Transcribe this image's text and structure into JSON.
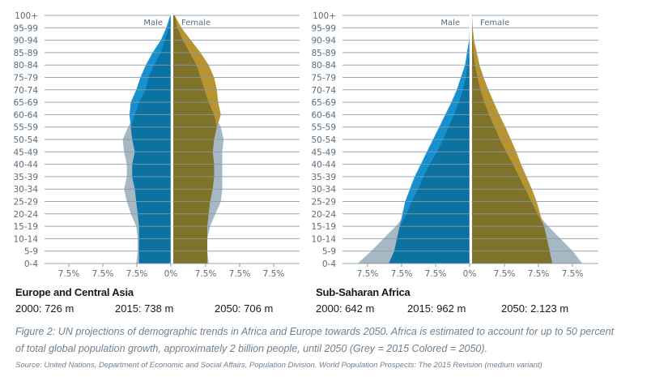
{
  "chart_data": [
    {
      "type": "bar",
      "subtype": "population-pyramid",
      "title": "Europe and Central Asia",
      "categories": [
        "100+",
        "95-99",
        "90-94",
        "85-89",
        "80-84",
        "75-79",
        "70-74",
        "65-69",
        "60-64",
        "55-59",
        "50-54",
        "45-49",
        "40-44",
        "35-39",
        "30-34",
        "25-29",
        "20-24",
        "15-19",
        "10-14",
        "5-9",
        "0-4"
      ],
      "sex_labels": {
        "male": "Male",
        "female": "Female"
      },
      "x_tick_labels": [
        "7.5%",
        "7.5%",
        "7.5%",
        "0%",
        "7.5%",
        "7.5%",
        "7.5%"
      ],
      "x_tick_values": [
        -7.5,
        -5,
        -2.5,
        0,
        2.5,
        5,
        7.5
      ],
      "xlim": [
        -9.0,
        9.5
      ],
      "unit": "% of population",
      "series": [
        {
          "name": "Male 2015",
          "year": "2015",
          "sex": "male",
          "values": [
            0.1,
            0.2,
            0.5,
            0.8,
            1.3,
            1.7,
            1.9,
            2.4,
            2.7,
            3.2,
            3.6,
            3.5,
            3.3,
            3.3,
            3.5,
            3.3,
            3.0,
            2.6,
            2.5,
            2.5,
            2.6
          ]
        },
        {
          "name": "Female 2015",
          "year": "2015",
          "sex": "female",
          "values": [
            0.1,
            0.3,
            0.7,
            1.2,
            1.7,
            2.0,
            2.3,
            2.6,
            3.0,
            3.5,
            3.7,
            3.6,
            3.6,
            3.6,
            3.6,
            3.5,
            3.1,
            2.7,
            2.5,
            2.5,
            2.6
          ]
        },
        {
          "name": "Male 2050",
          "year": "2050",
          "sex": "male",
          "values": [
            0.1,
            0.4,
            0.8,
            1.4,
            1.9,
            2.3,
            2.6,
            3.0,
            3.1,
            3.0,
            2.9,
            2.7,
            2.9,
            2.9,
            2.7,
            2.6,
            2.5,
            2.4,
            2.4,
            2.4,
            2.4
          ]
        },
        {
          "name": "Female 2050",
          "year": "2050",
          "sex": "female",
          "values": [
            0.1,
            0.6,
            1.3,
            2.0,
            2.6,
            3.0,
            3.2,
            3.3,
            3.5,
            3.2,
            3.0,
            2.9,
            3.0,
            3.0,
            2.9,
            2.7,
            2.6,
            2.5,
            2.5,
            2.5,
            2.5
          ]
        }
      ],
      "stats": [
        {
          "label": "2000: 726 m"
        },
        {
          "label": "2015: 738 m"
        },
        {
          "label": "2050: 706 m"
        }
      ]
    },
    {
      "type": "bar",
      "subtype": "population-pyramid",
      "title": "Sub-Saharan Africa",
      "categories": [
        "100+",
        "95-99",
        "90-94",
        "85-89",
        "80-84",
        "75-79",
        "70-74",
        "65-69",
        "60-64",
        "55-59",
        "50-54",
        "45-49",
        "40-44",
        "35-39",
        "30-34",
        "25-29",
        "20-24",
        "15-19",
        "10-14",
        "5-9",
        "0-4"
      ],
      "sex_labels": {
        "male": "Male",
        "female": "Female"
      },
      "x_tick_labels": [
        "7.5%",
        "7.5%",
        "7.5%",
        "0%",
        "7.5%",
        "7.5%",
        "7.5%"
      ],
      "x_tick_values": [
        -7.5,
        -5,
        -2.5,
        0,
        2.5,
        5,
        7.5
      ],
      "xlim": [
        -9.4,
        9.4
      ],
      "unit": "% of population",
      "series": [
        {
          "name": "Male 2015",
          "year": "2015",
          "sex": "male",
          "values": [
            0,
            0,
            0.05,
            0.1,
            0.2,
            0.35,
            0.55,
            0.85,
            1.2,
            1.6,
            2.0,
            2.45,
            3.0,
            3.45,
            3.85,
            4.3,
            4.7,
            5.5,
            6.4,
            7.3,
            8.3
          ]
        },
        {
          "name": "Female 2015",
          "year": "2015",
          "sex": "female",
          "values": [
            0,
            0,
            0.05,
            0.1,
            0.2,
            0.4,
            0.6,
            0.9,
            1.25,
            1.65,
            2.05,
            2.5,
            3.0,
            3.45,
            3.9,
            4.35,
            4.8,
            5.6,
            6.5,
            7.4,
            8.1
          ]
        },
        {
          "name": "Male 2050",
          "year": "2050",
          "sex": "male",
          "values": [
            0,
            0.05,
            0.1,
            0.25,
            0.4,
            0.7,
            1.0,
            1.4,
            1.85,
            2.3,
            2.75,
            3.2,
            3.65,
            4.1,
            4.45,
            4.8,
            5.0,
            5.2,
            5.4,
            5.6,
            6.0
          ]
        },
        {
          "name": "Female 2050",
          "year": "2050",
          "sex": "female",
          "values": [
            0,
            0.05,
            0.15,
            0.35,
            0.55,
            0.85,
            1.2,
            1.6,
            2.0,
            2.45,
            2.85,
            3.25,
            3.6,
            4.0,
            4.4,
            4.75,
            5.0,
            5.3,
            5.5,
            5.7,
            5.9
          ]
        }
      ],
      "stats": [
        {
          "label": "2000: 642 m"
        },
        {
          "label": "2015: 962 m"
        },
        {
          "label": "2050: 2.123 m"
        }
      ]
    }
  ],
  "colors": {
    "grid": "#8a9aa6",
    "grey_2015": "#a7b8c5",
    "male_2050": "#1690cf",
    "male_overlap": "#0a73a3",
    "female_2050": "#b89431",
    "female_overlap": "#7f722b",
    "center_line": "#ffffff"
  },
  "caption": {
    "line1": "Figure 2: UN projections of demographic trends in Africa and Europe towards 2050. Africa is estimated to account for up to 50 percent",
    "line2": "of total global population growth, approximately 2 billion people, until 2050 (Grey = 2015 Colored = 2050).",
    "source": "Source: United Nations, Department of Economic and Social Affairs, Population Division. World Population Prospects: The 2015 Revision (medium variant)"
  }
}
